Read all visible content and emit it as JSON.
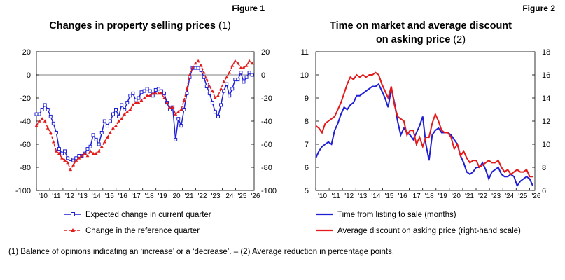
{
  "footnote": "(1) Balance of opinions indicating an ‘increase’ or a ‘decrease’. – (2) Average reduction in percentage points.",
  "chart_data": [
    {
      "type": "line",
      "figure_label": "Figure 1",
      "title": "Changes in property selling prices",
      "title_note": "(1)",
      "x_tick_labels": [
        "'10",
        "'11",
        "'12",
        "'13",
        "'14",
        "'15",
        "'16",
        "'17",
        "'18",
        "'19",
        "'20",
        "'21",
        "'22",
        "'23",
        "'24",
        "'25",
        "'26"
      ],
      "x_start_year": 2010,
      "ylim": [
        -100,
        20
      ],
      "yticks": [
        20,
        0,
        -20,
        -40,
        -60,
        -80,
        -100
      ],
      "right_axis": true,
      "grid": false,
      "series": [
        {
          "name": "Expected change in current quarter",
          "color": "#1f1fd6",
          "marker": "square",
          "values": [
            -34,
            -34,
            -30,
            -26,
            -30,
            -36,
            -42,
            -50,
            -64,
            -68,
            -66,
            -72,
            -73,
            -74,
            -72,
            -70,
            -70,
            -68,
            -64,
            -62,
            -52,
            -56,
            -60,
            -50,
            -40,
            -44,
            -40,
            -34,
            -30,
            -36,
            -26,
            -30,
            -24,
            -18,
            -16,
            -22,
            -20,
            -15,
            -14,
            -12,
            -14,
            -18,
            -13,
            -12,
            -14,
            -16,
            -24,
            -30,
            -28,
            -56,
            -38,
            -44,
            -30,
            -16,
            -2,
            6,
            6,
            6,
            4,
            -2,
            -10,
            -16,
            -24,
            -32,
            -36,
            -26,
            -14,
            -8,
            -18,
            -12,
            -4,
            -4,
            2,
            -6,
            -2,
            2,
            0
          ]
        },
        {
          "name": "Change in the reference quarter",
          "color": "#e41a1a",
          "marker": "triangle",
          "values": [
            -44,
            -40,
            -38,
            -40,
            -46,
            -50,
            -58,
            -66,
            -68,
            -72,
            -74,
            -76,
            -82,
            -78,
            -74,
            -72,
            -70,
            -68,
            -70,
            -66,
            -68,
            -68,
            -66,
            -62,
            -58,
            -54,
            -50,
            -46,
            -44,
            -40,
            -38,
            -34,
            -32,
            -30,
            -26,
            -24,
            -24,
            -22,
            -20,
            -18,
            -18,
            -16,
            -16,
            -16,
            -16,
            -20,
            -24,
            -28,
            -28,
            -34,
            -32,
            -30,
            -22,
            -12,
            0,
            6,
            10,
            12,
            8,
            2,
            -4,
            -10,
            -14,
            -20,
            -18,
            -12,
            -6,
            -2,
            2,
            8,
            12,
            10,
            6,
            6,
            8,
            12,
            10
          ]
        }
      ]
    },
    {
      "type": "line",
      "figure_label": "Figure 2",
      "title": "Time on market and average discount",
      "title_line2": "on asking price",
      "title_note": "(2)",
      "x_tick_labels": [
        "'10",
        "'11",
        "'12",
        "'13",
        "'14",
        "'15",
        "'16",
        "'17",
        "'18",
        "'19",
        "'20",
        "'21",
        "'22",
        "'23",
        "'24",
        "'25",
        "'26"
      ],
      "x_start_year": 2010,
      "ylim": [
        5,
        11
      ],
      "y2lim": [
        6,
        18
      ],
      "yticks": [
        11,
        10,
        9,
        8,
        7,
        6,
        5
      ],
      "y2ticks": [
        18,
        16,
        14,
        12,
        10,
        8,
        6
      ],
      "grid": false,
      "series": [
        {
          "name": "Time from listing to sale (months)",
          "color": "#1f1fd6",
          "axis": "left",
          "values": [
            6.4,
            6.7,
            6.9,
            7.0,
            7.1,
            7.0,
            7.6,
            7.9,
            8.3,
            8.6,
            8.5,
            8.7,
            8.8,
            9.1,
            9.1,
            9.2,
            9.3,
            9.4,
            9.5,
            9.5,
            9.6,
            9.3,
            9.0,
            8.6,
            9.4,
            8.8,
            8.0,
            7.4,
            7.7,
            7.5,
            7.4,
            7.2,
            7.5,
            7.8,
            8.2,
            7.0,
            6.3,
            7.4,
            7.6,
            7.7,
            7.5,
            7.5,
            7.5,
            7.4,
            7.2,
            7.0,
            6.5,
            6.2,
            5.8,
            5.7,
            5.8,
            6.0,
            6.0,
            6.2,
            5.9,
            5.5,
            5.8,
            5.9,
            6.0,
            5.7,
            5.6,
            5.6,
            5.7,
            5.6,
            5.2,
            5.4,
            5.5,
            5.6,
            5.5,
            5.2
          ]
        },
        {
          "name": "Average discount on asking price (right-hand scale)",
          "color": "#e41a1a",
          "axis": "right",
          "values": [
            11.6,
            11.4,
            11.0,
            11.8,
            12.0,
            12.2,
            12.4,
            13.0,
            13.6,
            14.4,
            15.2,
            15.8,
            15.6,
            16.0,
            15.8,
            16.0,
            15.8,
            16.0,
            16.0,
            16.2,
            16.0,
            15.2,
            14.6,
            14.0,
            15.0,
            13.4,
            12.4,
            12.2,
            12.0,
            10.8,
            11.2,
            11.2,
            10.0,
            10.6,
            9.8,
            10.6,
            10.6,
            11.8,
            12.6,
            12.0,
            11.2,
            11.0,
            11.0,
            10.6,
            9.6,
            10.0,
            9.0,
            9.4,
            8.8,
            8.4,
            8.6,
            8.6,
            8.0,
            8.2,
            8.4,
            8.6,
            8.4,
            8.4,
            8.6,
            8.0,
            7.6,
            7.8,
            7.4,
            7.6,
            7.8,
            7.6,
            7.6,
            7.8,
            7.2,
            7.2
          ]
        }
      ]
    }
  ]
}
